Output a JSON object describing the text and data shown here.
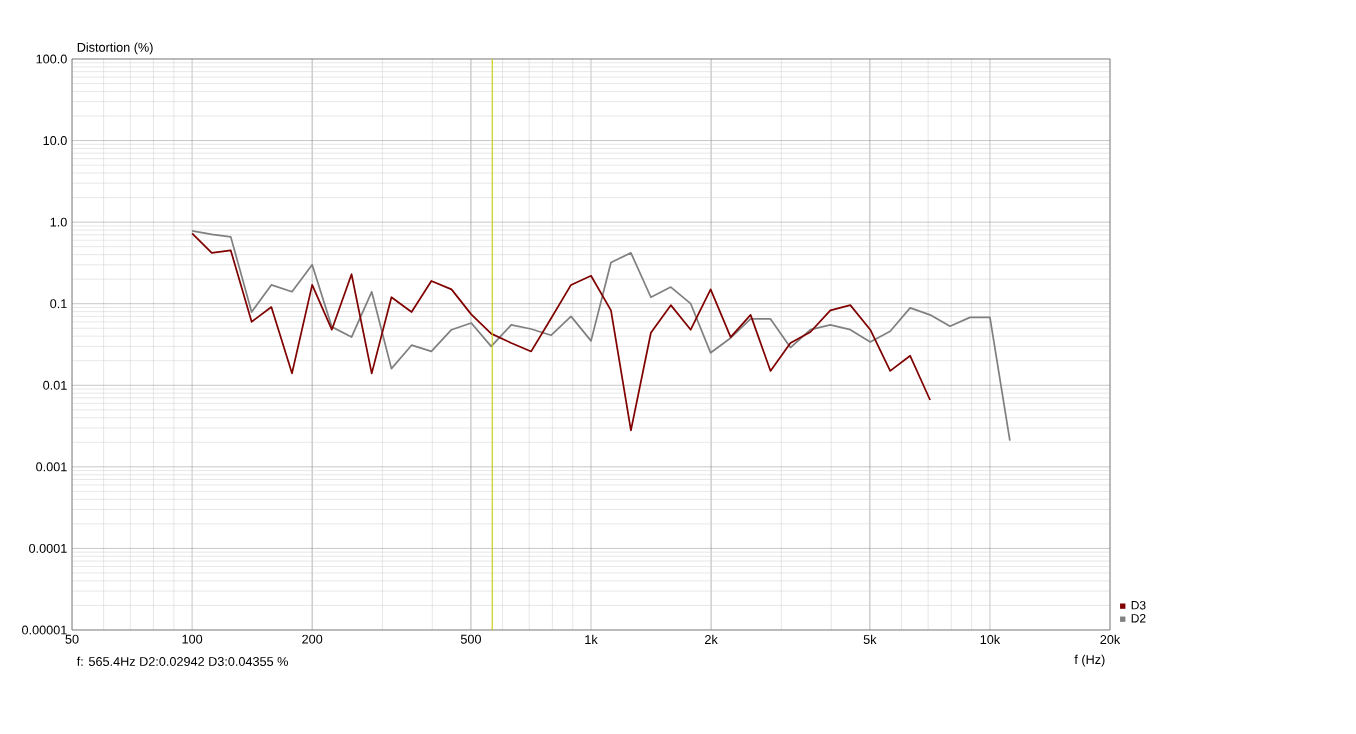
{
  "chart_data": {
    "type": "line",
    "xlabel": "f (Hz)",
    "ylabel": "Distortion (%)",
    "log": "xy",
    "grid": true,
    "legend": "bottom right",
    "xlim": [
      50,
      20000
    ],
    "ylim": [
      1e-05,
      100
    ],
    "xticks": [
      50,
      100,
      200,
      500,
      {
        "value": 1000,
        "label": "1k"
      },
      {
        "value": 2000,
        "label": "2k"
      },
      {
        "value": 5000,
        "label": "5k"
      },
      {
        "value": 10000,
        "label": "10k"
      },
      {
        "value": 20000,
        "label": "20k"
      }
    ],
    "yticks": [
      {
        "value": 1e-05,
        "label": "0.00001"
      },
      {
        "value": 0.0001,
        "label": "0.0001"
      },
      {
        "value": 0.001,
        "label": "0.001"
      },
      {
        "value": 0.01,
        "label": "0.01"
      },
      {
        "value": 0.1,
        "label": "0.1"
      },
      {
        "value": 1,
        "label": "1.0"
      },
      {
        "value": 10,
        "label": "10.0"
      },
      {
        "value": 100,
        "label": "100.0"
      }
    ],
    "series": [
      {
        "name": "D3",
        "color": "#800000",
        "x": [
          100,
          112,
          125,
          141,
          158,
          178,
          200,
          224,
          251,
          282,
          316,
          355,
          398,
          447,
          501,
          562,
          631,
          708,
          794,
          891,
          1000,
          1122,
          1259,
          1413,
          1585,
          1778,
          1995,
          2239,
          2512,
          2818,
          3162,
          3548,
          3981,
          4467,
          5012,
          5623,
          6310,
          7079
        ],
        "values": [
          0.73,
          0.42,
          0.45,
          0.06,
          0.091,
          0.014,
          0.17,
          0.048,
          0.23,
          0.014,
          0.12,
          0.079,
          0.19,
          0.15,
          0.074,
          0.043,
          0.033,
          0.026,
          0.066,
          0.17,
          0.22,
          0.083,
          0.0028,
          0.044,
          0.096,
          0.048,
          0.15,
          0.039,
          0.073,
          0.015,
          0.033,
          0.045,
          0.083,
          0.096,
          0.048,
          0.015,
          0.023,
          0.0066
        ]
      },
      {
        "name": "D2",
        "color": "#808080",
        "x": [
          100,
          112,
          125,
          141,
          158,
          178,
          200,
          224,
          251,
          282,
          316,
          355,
          398,
          447,
          501,
          562,
          631,
          708,
          794,
          891,
          1000,
          1122,
          1259,
          1413,
          1585,
          1778,
          1995,
          2239,
          2512,
          2818,
          3162,
          3548,
          3981,
          4467,
          5012,
          5623,
          6310,
          7079,
          7943,
          8913,
          10000,
          11220
        ],
        "values": [
          0.78,
          0.71,
          0.66,
          0.079,
          0.17,
          0.14,
          0.3,
          0.052,
          0.039,
          0.14,
          0.016,
          0.031,
          0.026,
          0.048,
          0.058,
          0.03,
          0.055,
          0.049,
          0.041,
          0.07,
          0.035,
          0.32,
          0.42,
          0.12,
          0.16,
          0.1,
          0.025,
          0.038,
          0.065,
          0.065,
          0.029,
          0.048,
          0.055,
          0.048,
          0.034,
          0.046,
          0.089,
          0.073,
          0.053,
          0.068,
          0.068,
          0.0021
        ]
      }
    ],
    "ref_lines": [
      {
        "axis": "x",
        "value": 565.4,
        "color": "#c8c800"
      }
    ],
    "annotations": [
      "f: 565.4Hz     D2:0.02942     D3:0.04355 %"
    ]
  }
}
